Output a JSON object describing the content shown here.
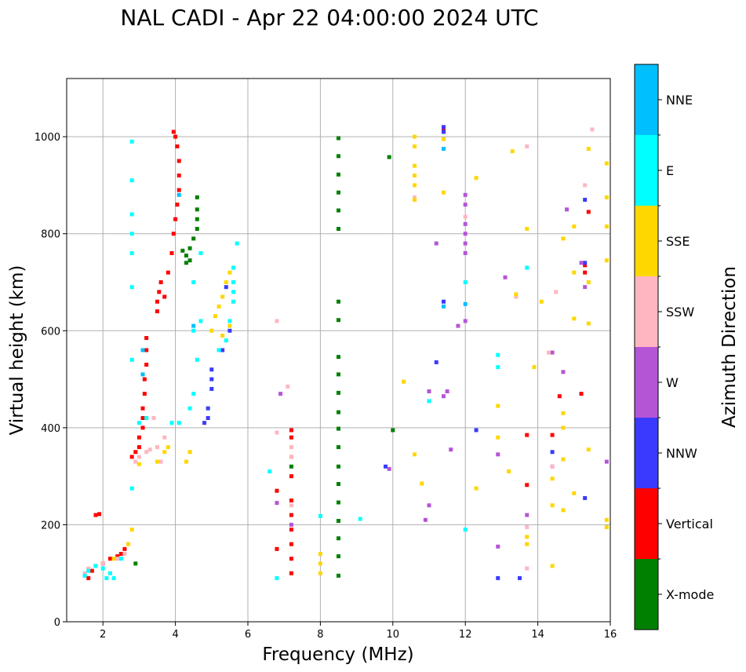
{
  "chart_data": {
    "type": "scatter",
    "title": "NAL CADI - Apr 22 04:00:00 2024 UTC",
    "xlabel": "Frequency (MHz)",
    "ylabel": "Virtual height (km)",
    "xlim": [
      1,
      16
    ],
    "ylim": [
      0,
      1120
    ],
    "xticks": [
      2,
      4,
      6,
      8,
      10,
      12,
      14,
      16
    ],
    "yticks": [
      0,
      200,
      400,
      600,
      800,
      1000
    ],
    "grid": true,
    "colorbar": {
      "label": "Azimuth Direction",
      "categories": [
        {
          "name": "X-mode",
          "color": "#008000"
        },
        {
          "name": "Vertical",
          "color": "#ff0000"
        },
        {
          "name": "NNW",
          "color": "#3a3aff"
        },
        {
          "name": "W",
          "color": "#b455d6"
        },
        {
          "name": "SSW",
          "color": "#ffb6c1"
        },
        {
          "name": "SSE",
          "color": "#ffd700"
        },
        {
          "name": "E",
          "color": "#00ffff"
        },
        {
          "name": "NNE",
          "color": "#00bfff"
        }
      ]
    },
    "series": [
      {
        "name": "X-mode",
        "points": [
          [
            8.5,
            95
          ],
          [
            8.5,
            135
          ],
          [
            8.5,
            172
          ],
          [
            8.5,
            208
          ],
          [
            8.5,
            246
          ],
          [
            8.5,
            284
          ],
          [
            8.5,
            320
          ],
          [
            8.5,
            360
          ],
          [
            8.5,
            398
          ],
          [
            8.5,
            432
          ],
          [
            8.5,
            472
          ],
          [
            8.5,
            510
          ],
          [
            8.5,
            546
          ],
          [
            8.5,
            622
          ],
          [
            8.5,
            660
          ],
          [
            8.5,
            810
          ],
          [
            8.5,
            848
          ],
          [
            8.5,
            885
          ],
          [
            8.5,
            922
          ],
          [
            8.5,
            960
          ],
          [
            8.5,
            997
          ],
          [
            4.3,
            740
          ],
          [
            4.3,
            755
          ],
          [
            4.4,
            770
          ],
          [
            4.5,
            790
          ],
          [
            4.6,
            810
          ],
          [
            4.6,
            830
          ],
          [
            4.6,
            850
          ],
          [
            4.6,
            875
          ],
          [
            4.2,
            765
          ],
          [
            4.4,
            745
          ],
          [
            2.9,
            120
          ],
          [
            7.2,
            320
          ],
          [
            9.9,
            958
          ],
          [
            10.0,
            395
          ]
        ]
      },
      {
        "name": "Vertical",
        "points": [
          [
            1.6,
            90
          ],
          [
            1.7,
            105
          ],
          [
            1.8,
            115
          ],
          [
            2.0,
            120
          ],
          [
            2.2,
            130
          ],
          [
            2.4,
            135
          ],
          [
            2.5,
            140
          ],
          [
            2.6,
            150
          ],
          [
            1.8,
            220
          ],
          [
            1.9,
            222
          ],
          [
            2.8,
            340
          ],
          [
            2.9,
            350
          ],
          [
            3.0,
            360
          ],
          [
            3.0,
            380
          ],
          [
            3.1,
            400
          ],
          [
            3.1,
            420
          ],
          [
            3.1,
            440
          ],
          [
            3.15,
            470
          ],
          [
            3.15,
            500
          ],
          [
            3.2,
            530
          ],
          [
            3.2,
            560
          ],
          [
            3.2,
            585
          ],
          [
            3.5,
            640
          ],
          [
            3.5,
            660
          ],
          [
            3.55,
            680
          ],
          [
            3.6,
            700
          ],
          [
            3.7,
            670
          ],
          [
            3.8,
            720
          ],
          [
            3.9,
            760
          ],
          [
            3.95,
            800
          ],
          [
            4.0,
            830
          ],
          [
            4.05,
            860
          ],
          [
            4.1,
            890
          ],
          [
            4.1,
            920
          ],
          [
            4.1,
            950
          ],
          [
            4.05,
            980
          ],
          [
            4.0,
            1000
          ],
          [
            3.95,
            1010
          ],
          [
            7.2,
            100
          ],
          [
            7.2,
            130
          ],
          [
            7.2,
            160
          ],
          [
            7.2,
            190
          ],
          [
            7.2,
            220
          ],
          [
            7.2,
            250
          ],
          [
            7.2,
            300
          ],
          [
            7.2,
            340
          ],
          [
            7.2,
            380
          ],
          [
            7.2,
            395
          ],
          [
            6.8,
            270
          ],
          [
            6.8,
            150
          ],
          [
            13.7,
            385
          ],
          [
            13.7,
            282
          ],
          [
            14.4,
            385
          ],
          [
            14.6,
            465
          ],
          [
            15.2,
            470
          ],
          [
            15.3,
            720
          ],
          [
            15.3,
            735
          ],
          [
            15.4,
            845
          ],
          [
            11.4,
            1015
          ]
        ]
      },
      {
        "name": "NNW",
        "points": [
          [
            4.8,
            410
          ],
          [
            4.9,
            420
          ],
          [
            4.9,
            440
          ],
          [
            5.0,
            480
          ],
          [
            5.0,
            500
          ],
          [
            5.0,
            520
          ],
          [
            5.3,
            560
          ],
          [
            5.5,
            600
          ],
          [
            5.4,
            690
          ],
          [
            11.2,
            535
          ],
          [
            12.3,
            395
          ],
          [
            12.9,
            90
          ],
          [
            13.5,
            90
          ],
          [
            15.3,
            255
          ],
          [
            15.3,
            870
          ],
          [
            15.3,
            740
          ],
          [
            14.4,
            350
          ],
          [
            9.8,
            320
          ],
          [
            11.4,
            660
          ],
          [
            11.4,
            1010
          ],
          [
            11.4,
            1020
          ]
        ]
      },
      {
        "name": "W",
        "points": [
          [
            12.9,
            155
          ],
          [
            12.9,
            345
          ],
          [
            13.1,
            710
          ],
          [
            12.0,
            880
          ],
          [
            12.0,
            860
          ],
          [
            12.0,
            820
          ],
          [
            12.0,
            800
          ],
          [
            12.0,
            780
          ],
          [
            12.0,
            760
          ],
          [
            11.2,
            780
          ],
          [
            11.8,
            610
          ],
          [
            12.0,
            620
          ],
          [
            13.7,
            220
          ],
          [
            14.4,
            320
          ],
          [
            14.4,
            555
          ],
          [
            14.7,
            515
          ],
          [
            14.8,
            850
          ],
          [
            15.2,
            740
          ],
          [
            15.3,
            690
          ],
          [
            15.9,
            330
          ],
          [
            7.2,
            200
          ],
          [
            6.8,
            245
          ],
          [
            6.9,
            470
          ],
          [
            10.9,
            210
          ],
          [
            11.0,
            475
          ],
          [
            11.4,
            465
          ],
          [
            11.5,
            475
          ],
          [
            11.6,
            355
          ],
          [
            11.0,
            240
          ],
          [
            9.9,
            315
          ]
        ]
      },
      {
        "name": "SSW",
        "points": [
          [
            1.5,
            100
          ],
          [
            1.6,
            110
          ],
          [
            1.8,
            115
          ],
          [
            2.0,
            120
          ],
          [
            2.4,
            130
          ],
          [
            2.6,
            140
          ],
          [
            2.7,
            160
          ],
          [
            2.9,
            330
          ],
          [
            3.0,
            340
          ],
          [
            3.2,
            350
          ],
          [
            3.3,
            355
          ],
          [
            3.5,
            360
          ],
          [
            3.6,
            330
          ],
          [
            3.7,
            380
          ],
          [
            3.4,
            420
          ],
          [
            7.2,
            340
          ],
          [
            7.2,
            360
          ],
          [
            7.2,
            240
          ],
          [
            6.8,
            390
          ],
          [
            6.8,
            620
          ],
          [
            7.1,
            485
          ],
          [
            13.7,
            110
          ],
          [
            13.7,
            195
          ],
          [
            14.4,
            320
          ],
          [
            14.3,
            555
          ],
          [
            15.3,
            900
          ],
          [
            15.5,
            1015
          ],
          [
            10.6,
            875
          ],
          [
            13.7,
            980
          ],
          [
            12.0,
            835
          ],
          [
            13.4,
            670
          ],
          [
            14.5,
            680
          ]
        ]
      },
      {
        "name": "SSE",
        "points": [
          [
            2.3,
            130
          ],
          [
            2.7,
            160
          ],
          [
            2.8,
            190
          ],
          [
            3.0,
            325
          ],
          [
            3.5,
            330
          ],
          [
            3.7,
            350
          ],
          [
            3.8,
            360
          ],
          [
            4.4,
            350
          ],
          [
            4.3,
            330
          ],
          [
            5.0,
            600
          ],
          [
            5.1,
            630
          ],
          [
            5.2,
            650
          ],
          [
            5.3,
            670
          ],
          [
            5.4,
            700
          ],
          [
            5.5,
            720
          ],
          [
            5.3,
            590
          ],
          [
            5.2,
            560
          ],
          [
            5.5,
            610
          ],
          [
            5.6,
            660
          ],
          [
            8.0,
            100
          ],
          [
            8.0,
            120
          ],
          [
            8.0,
            140
          ],
          [
            10.6,
            1000
          ],
          [
            10.6,
            980
          ],
          [
            10.6,
            940
          ],
          [
            10.6,
            920
          ],
          [
            10.6,
            900
          ],
          [
            10.6,
            870
          ],
          [
            10.3,
            495
          ],
          [
            10.8,
            285
          ],
          [
            10.6,
            345
          ],
          [
            11.4,
            995
          ],
          [
            11.4,
            885
          ],
          [
            12.3,
            915
          ],
          [
            12.3,
            275
          ],
          [
            12.9,
            380
          ],
          [
            12.9,
            445
          ],
          [
            13.2,
            310
          ],
          [
            13.4,
            675
          ],
          [
            13.3,
            970
          ],
          [
            13.7,
            160
          ],
          [
            13.7,
            175
          ],
          [
            13.7,
            810
          ],
          [
            13.9,
            525
          ],
          [
            14.1,
            660
          ],
          [
            14.4,
            115
          ],
          [
            14.4,
            240
          ],
          [
            14.4,
            295
          ],
          [
            14.7,
            230
          ],
          [
            14.7,
            335
          ],
          [
            14.7,
            400
          ],
          [
            14.7,
            430
          ],
          [
            14.7,
            790
          ],
          [
            15.0,
            265
          ],
          [
            15.0,
            720
          ],
          [
            15.0,
            815
          ],
          [
            15.0,
            625
          ],
          [
            15.4,
            355
          ],
          [
            15.4,
            615
          ],
          [
            15.4,
            700
          ],
          [
            15.4,
            975
          ],
          [
            15.9,
            195
          ],
          [
            15.9,
            210
          ],
          [
            15.9,
            745
          ],
          [
            15.9,
            815
          ],
          [
            15.9,
            875
          ],
          [
            15.9,
            945
          ]
        ]
      },
      {
        "name": "E",
        "points": [
          [
            1.5,
            95
          ],
          [
            1.6,
            105
          ],
          [
            1.8,
            115
          ],
          [
            2.0,
            110
          ],
          [
            2.2,
            100
          ],
          [
            2.5,
            130
          ],
          [
            2.1,
            90
          ],
          [
            2.3,
            90
          ],
          [
            3.0,
            410
          ],
          [
            3.2,
            420
          ],
          [
            3.9,
            410
          ],
          [
            4.1,
            410
          ],
          [
            4.4,
            440
          ],
          [
            4.5,
            470
          ],
          [
            4.6,
            540
          ],
          [
            4.5,
            600
          ],
          [
            4.7,
            620
          ],
          [
            4.7,
            760
          ],
          [
            4.5,
            700
          ],
          [
            5.2,
            560
          ],
          [
            5.4,
            580
          ],
          [
            5.5,
            620
          ],
          [
            5.6,
            660
          ],
          [
            5.6,
            680
          ],
          [
            5.6,
            700
          ],
          [
            5.7,
            780
          ],
          [
            5.6,
            730
          ],
          [
            2.8,
            275
          ],
          [
            2.8,
            540
          ],
          [
            2.8,
            690
          ],
          [
            2.8,
            760
          ],
          [
            2.8,
            800
          ],
          [
            2.8,
            840
          ],
          [
            2.8,
            910
          ],
          [
            2.8,
            990
          ],
          [
            12.0,
            700
          ],
          [
            12.9,
            525
          ],
          [
            12.9,
            550
          ],
          [
            13.7,
            730
          ],
          [
            11.0,
            455
          ],
          [
            6.6,
            310
          ],
          [
            6.8,
            90
          ],
          [
            8.0,
            218
          ],
          [
            9.1,
            212
          ],
          [
            12.0,
            190
          ]
        ]
      },
      {
        "name": "NNE",
        "points": [
          [
            11.4,
            650
          ],
          [
            11.4,
            975
          ],
          [
            12.0,
            655
          ],
          [
            4.5,
            610
          ],
          [
            4.1,
            880
          ],
          [
            3.1,
            510
          ],
          [
            3.1,
            560
          ]
        ]
      }
    ]
  }
}
